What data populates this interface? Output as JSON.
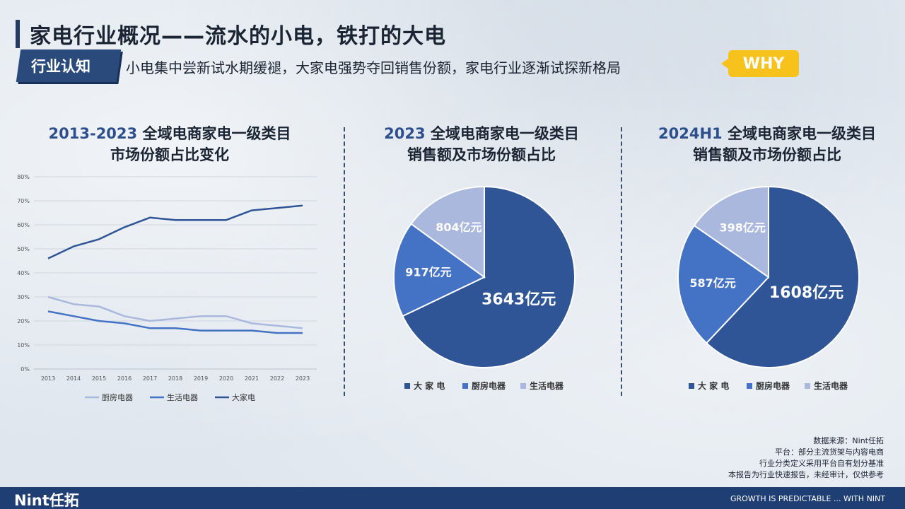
{
  "header": {
    "title": "家电行业概况——流水的小电，铁打的大电",
    "tag": "行业认知",
    "subtitle": "小电集中尝新试水期缓褪，大家电强势夺回销售份额，家电行业逐渐试探新格局",
    "badge": "WHY"
  },
  "panels": [
    {
      "title_year": "2013-2023",
      "title_rest": " 全域电商家电一级类目",
      "title_line2": "市场份额占比变化"
    },
    {
      "title_year": "2023",
      "title_rest": " 全域电商家电一级类目",
      "title_line2": "销售额及市场份额占比"
    },
    {
      "title_year": "2024H1",
      "title_rest": " 全域电商家电一级类目",
      "title_line2": "销售额及市场份额占比"
    }
  ],
  "colors": {
    "big": "#2f5597",
    "kitchen": "#4472c4",
    "life": "#a9b8dc",
    "line_big": "#2f5597",
    "line_life": "#4472c4",
    "line_kitchen": "#a9b8dc"
  },
  "chart_data": [
    {
      "type": "line",
      "x": [
        "2013",
        "2014",
        "2015",
        "2016",
        "2017",
        "2018",
        "2019",
        "2020",
        "2021",
        "2022",
        "2023"
      ],
      "ylim": [
        0,
        80
      ],
      "yticks": [
        "0%",
        "10%",
        "20%",
        "30%",
        "40%",
        "50%",
        "60%",
        "70%",
        "80%"
      ],
      "grid": true,
      "legend": "bottom",
      "series": [
        {
          "name": "厨房电器",
          "key": "kitchen",
          "values": [
            30,
            27,
            26,
            22,
            20,
            21,
            22,
            22,
            19,
            18,
            17
          ]
        },
        {
          "name": "生活电器",
          "key": "life",
          "values": [
            24,
            22,
            20,
            19,
            17,
            17,
            16,
            16,
            16,
            15,
            15
          ]
        },
        {
          "name": "大家电",
          "key": "big",
          "values": [
            46,
            51,
            54,
            59,
            63,
            62,
            62,
            62,
            66,
            67,
            68
          ]
        }
      ]
    },
    {
      "type": "pie",
      "legend": "bottom",
      "slices": [
        {
          "name": "大 家 电",
          "key": "big",
          "value": 3643,
          "label": "3643亿元"
        },
        {
          "name": "厨房电器",
          "key": "kitchen",
          "value": 917,
          "label": "917亿元"
        },
        {
          "name": "生活电器",
          "key": "life",
          "value": 804,
          "label": "804亿元"
        }
      ]
    },
    {
      "type": "pie",
      "legend": "bottom",
      "slices": [
        {
          "name": "大 家 电",
          "key": "big",
          "value": 1608,
          "label": "1608亿元"
        },
        {
          "name": "厨房电器",
          "key": "kitchen",
          "value": 587,
          "label": "587亿元"
        },
        {
          "name": "生活电器",
          "key": "life",
          "value": 398,
          "label": "398亿元"
        }
      ]
    }
  ],
  "source": {
    "line1": "数据来源：Nint任拓",
    "line2": "平台：部分主流货架与内容电商",
    "line3": "行业分类定义采用平台自有划分基准",
    "line4": "本报告为行业快速报告，未经审计，仅供参考"
  },
  "footer": {
    "logo": "Nint任拓",
    "tagline": "GROWTH IS PREDICTABLE ... WITH NINT"
  }
}
